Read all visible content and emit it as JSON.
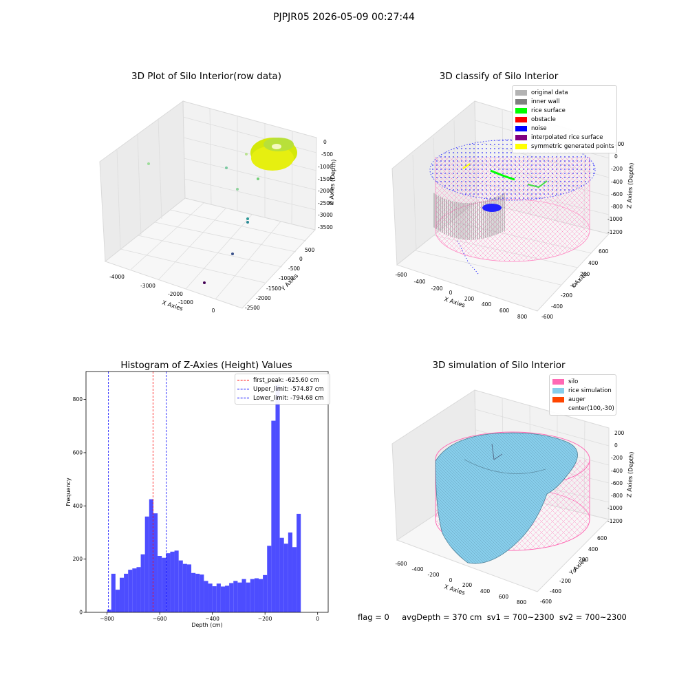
{
  "suptitle": "PJPJR05 2026-05-09 00:27:44",
  "status_text": "flag = 0     avgDepth = 370 cm  sv1 = 700~2300  sv2 = 700~2300",
  "colors": {
    "original": "#b3b3b3",
    "inner_wall": "#808080",
    "rice_surface": "#00ff00",
    "obstacle": "#ff0000",
    "noise": "#0000ff",
    "interpolated": "#800080",
    "symmetric": "#ffff00",
    "silo": "#ff69b4",
    "rice_sim": "#87ceeb",
    "auger": "#ff4500",
    "hist_bar": "#4d4dff"
  },
  "chart_data": [
    {
      "type": "scatter",
      "title": "3D Plot of Silo Interior(row data)",
      "xlabel": "X Axies",
      "ylabel": "Y Axies",
      "zlabel": "Z Axies (Depth)",
      "xticks": [
        "-4000",
        "-3000",
        "-2000",
        "-1000",
        "0"
      ],
      "yticks": [
        "500",
        "0",
        "-500",
        "-1000",
        "-1500",
        "-2000",
        "-2500"
      ],
      "zticks": [
        "0",
        "-500",
        "-1000",
        "-1500",
        "-2000",
        "-2500",
        "-3000",
        "-3500"
      ]
    },
    {
      "type": "scatter",
      "title": "3D classify of Silo Interior",
      "xlabel": "X Axies",
      "ylabel": "Y Axies",
      "zlabel": "Z Axies (Depth)",
      "xticks": [
        "-600",
        "-400",
        "-200",
        "0",
        "200",
        "400",
        "600",
        "800"
      ],
      "yticks": [
        "600",
        "400",
        "200",
        "0",
        "-200",
        "-400",
        "-600"
      ],
      "zticks": [
        "200",
        "0",
        "-200",
        "-400",
        "-600",
        "-800",
        "-1000",
        "-1200"
      ],
      "legend": [
        "original data",
        "inner wall",
        "rice surface",
        "obstacle",
        "noise",
        "interpolated rice surface",
        "symmetric generated points"
      ]
    },
    {
      "type": "bar",
      "title": "Histogram of Z-Axies (Height) Values",
      "xlabel": "Depth (cm)",
      "ylabel": "Frequency",
      "xlim": [
        -880,
        40
      ],
      "ylim": [
        0,
        905
      ],
      "xticks": [
        -800,
        -600,
        -400,
        -200,
        0
      ],
      "yticks": [
        0,
        200,
        400,
        600,
        800
      ],
      "bin_start": -800,
      "bin_width": 16,
      "values": [
        10,
        145,
        85,
        130,
        145,
        160,
        165,
        170,
        218,
        360,
        425,
        372,
        212,
        205,
        222,
        228,
        232,
        195,
        182,
        180,
        148,
        145,
        142,
        118,
        108,
        98,
        108,
        97,
        100,
        110,
        118,
        112,
        125,
        112,
        125,
        128,
        125,
        140,
        250,
        720,
        855,
        280,
        258,
        300,
        245,
        370
      ],
      "vlines": [
        {
          "label": "first_peak: -625.60 cm",
          "x": -625.6,
          "color": "#ff0000"
        },
        {
          "label": "Upper_limit: -574.87 cm",
          "x": -574.87,
          "color": "#0000ff"
        },
        {
          "label": "Lower_limit: -794.68 cm",
          "x": -794.68,
          "color": "#0000ff"
        }
      ]
    },
    {
      "type": "area",
      "title": "3D simulation of Silo Interior",
      "xlabel": "X Axies",
      "ylabel": "Y Axies",
      "zlabel": "Z Axies (Depth)",
      "xticks": [
        "-600",
        "-400",
        "-200",
        "0",
        "200",
        "400",
        "600",
        "800"
      ],
      "yticks": [
        "600",
        "400",
        "200",
        "0",
        "-200",
        "-400",
        "-600"
      ],
      "zticks": [
        "200",
        "0",
        "-200",
        "-400",
        "-600",
        "-800",
        "-1000",
        "-1200"
      ],
      "legend": [
        "silo",
        "rice simulation",
        "auger",
        "center(100,-30)"
      ]
    }
  ]
}
